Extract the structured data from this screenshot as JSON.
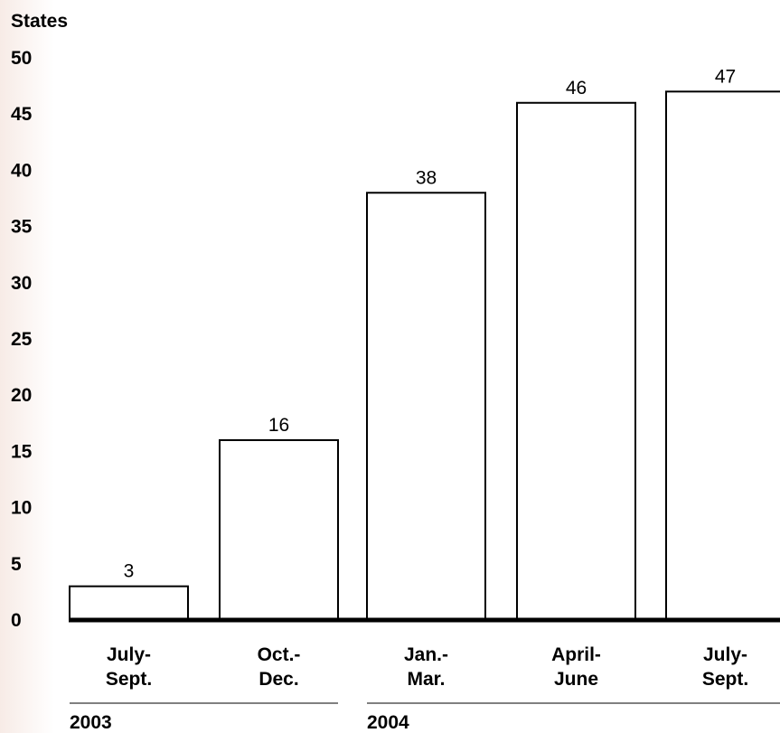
{
  "chart_data": {
    "type": "bar",
    "ylabel": "States",
    "ylim": [
      0,
      50
    ],
    "yticks": [
      0,
      5,
      10,
      15,
      20,
      25,
      30,
      35,
      40,
      45,
      50
    ],
    "categories": [
      [
        "July-",
        "Sept."
      ],
      [
        "Oct.-",
        "Dec."
      ],
      [
        "Jan.-",
        "Mar."
      ],
      [
        "April-",
        "June"
      ],
      [
        "July-",
        "Sept."
      ]
    ],
    "values": [
      3,
      16,
      38,
      46,
      47
    ],
    "year_groups": [
      {
        "label": "2003",
        "categories": [
          0,
          1
        ]
      },
      {
        "label": "2004",
        "categories": [
          2,
          3,
          4
        ]
      }
    ],
    "grid": false,
    "bar_fill": "#ffffff",
    "bar_stroke": "#000000"
  }
}
